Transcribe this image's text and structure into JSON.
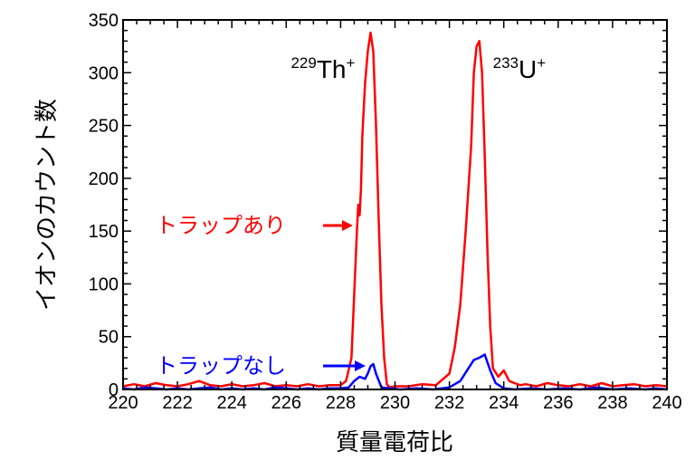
{
  "chart_data": {
    "type": "line",
    "xlabel": "質量電荷比",
    "ylabel": "イオンのカウント数",
    "xlim": [
      220,
      240
    ],
    "ylim": [
      0,
      350
    ],
    "xticks": [
      220,
      222,
      224,
      226,
      228,
      230,
      232,
      234,
      236,
      238,
      240
    ],
    "yticks": [
      0,
      50,
      100,
      150,
      200,
      250,
      300,
      350
    ],
    "grid": false,
    "annotations": [
      {
        "id": "th",
        "mass": "229",
        "symbol": "Th",
        "charge": "+",
        "x": 229.2,
        "y": 295
      },
      {
        "id": "u",
        "mass": "233",
        "symbol": "U",
        "charge": "+",
        "x": 233.0,
        "y": 295
      }
    ],
    "series": [
      {
        "name": "トラップあり",
        "color": "#ff0000",
        "x": [
          220.0,
          220.4,
          220.8,
          221.2,
          221.6,
          222.0,
          222.4,
          222.8,
          223.2,
          223.6,
          224.0,
          224.4,
          224.8,
          225.2,
          225.6,
          226.0,
          226.4,
          226.8,
          227.2,
          227.6,
          228.0,
          228.2,
          228.4,
          228.5,
          228.6,
          228.65,
          228.7,
          228.75,
          228.8,
          228.9,
          229.0,
          229.1,
          229.2,
          229.3,
          229.4,
          229.5,
          229.6,
          229.7,
          229.8,
          230.0,
          230.5,
          231.0,
          231.5,
          232.0,
          232.2,
          232.4,
          232.6,
          232.8,
          232.9,
          233.0,
          233.1,
          233.2,
          233.3,
          233.4,
          233.5,
          233.6,
          233.8,
          234.0,
          234.2,
          234.4,
          234.6,
          234.8,
          235.2,
          235.6,
          236.0,
          236.4,
          236.8,
          237.2,
          237.6,
          238.0,
          238.4,
          238.8,
          239.2,
          239.6,
          240.0
        ],
        "y": [
          3,
          5,
          3,
          6,
          4,
          3,
          5,
          8,
          4,
          3,
          5,
          3,
          4,
          6,
          3,
          4,
          3,
          5,
          3,
          4,
          4,
          8,
          30,
          90,
          150,
          175,
          165,
          190,
          240,
          290,
          320,
          338,
          320,
          250,
          160,
          80,
          30,
          5,
          2,
          3,
          3,
          5,
          4,
          15,
          40,
          80,
          150,
          230,
          300,
          325,
          330,
          300,
          220,
          130,
          60,
          20,
          12,
          18,
          8,
          6,
          4,
          5,
          3,
          6,
          4,
          3,
          5,
          3,
          6,
          3,
          4,
          5,
          3,
          4,
          3
        ]
      },
      {
        "name": "トラップなし",
        "color": "#0000ff",
        "x": [
          220.0,
          220.4,
          220.8,
          221.2,
          221.6,
          222.0,
          222.4,
          222.8,
          223.2,
          223.6,
          224.0,
          224.4,
          224.8,
          225.2,
          225.6,
          226.0,
          226.4,
          226.8,
          227.2,
          227.6,
          228.0,
          228.3,
          228.5,
          228.7,
          228.9,
          229.0,
          229.1,
          229.2,
          229.3,
          229.5,
          229.8,
          230.2,
          230.8,
          231.4,
          232.0,
          232.4,
          232.7,
          232.9,
          233.1,
          233.3,
          233.5,
          233.7,
          234.0,
          234.4,
          235.0,
          235.6,
          236.2,
          236.8,
          237.4,
          238.0,
          238.6,
          239.2,
          239.6,
          240.0
        ],
        "y": [
          1,
          0,
          2,
          1,
          0,
          1,
          0,
          1,
          2,
          0,
          1,
          0,
          1,
          0,
          2,
          1,
          0,
          1,
          0,
          1,
          1,
          2,
          8,
          12,
          10,
          15,
          22,
          24,
          15,
          2,
          1,
          0,
          1,
          0,
          2,
          8,
          20,
          28,
          30,
          33,
          18,
          6,
          1,
          0,
          1,
          0,
          1,
          0,
          2,
          0,
          1,
          0,
          1,
          0
        ]
      }
    ]
  }
}
